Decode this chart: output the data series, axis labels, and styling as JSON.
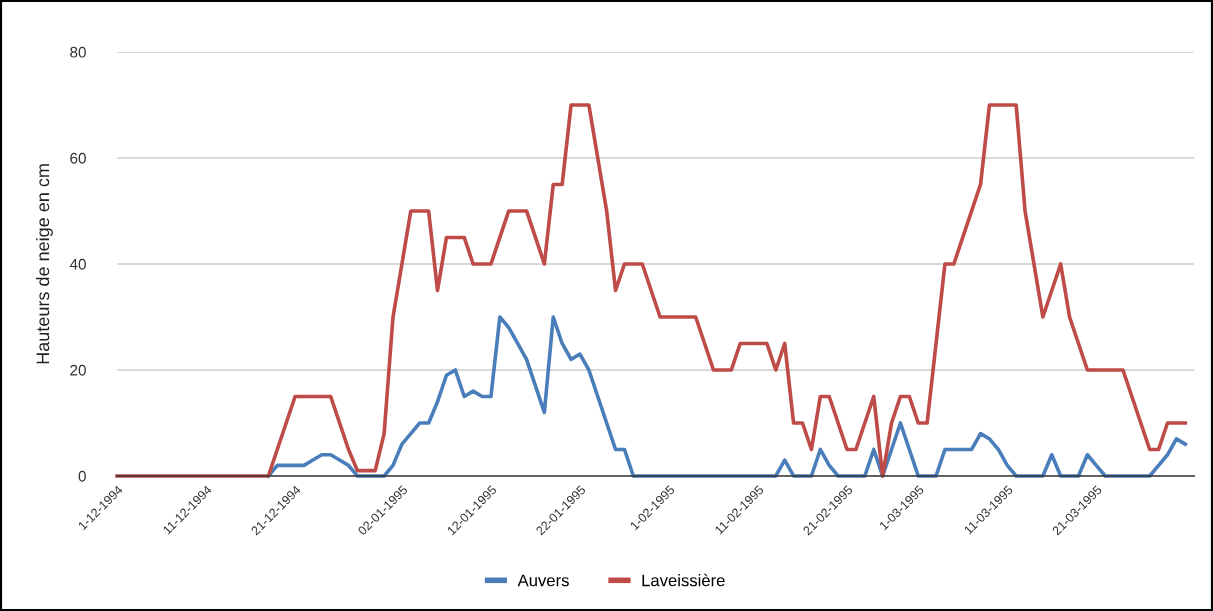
{
  "chart_data": {
    "type": "line",
    "ylabel": "Hauteurs de neige en cm",
    "x": [
      "1994-12-01",
      "1994-12-02",
      "1994-12-03",
      "1994-12-04",
      "1994-12-05",
      "1994-12-06",
      "1994-12-07",
      "1994-12-08",
      "1994-12-09",
      "1994-12-10",
      "1994-12-11",
      "1994-12-12",
      "1994-12-13",
      "1994-12-14",
      "1994-12-15",
      "1994-12-16",
      "1994-12-17",
      "1994-12-18",
      "1994-12-19",
      "1994-12-20",
      "1994-12-21",
      "1994-12-22",
      "1994-12-23",
      "1994-12-24",
      "1994-12-25",
      "1994-12-26",
      "1994-12-27",
      "1994-12-28",
      "1994-12-29",
      "1994-12-30",
      "1994-12-31",
      "1995-01-01",
      "1995-01-02",
      "1995-01-03",
      "1995-01-04",
      "1995-01-05",
      "1995-01-06",
      "1995-01-07",
      "1995-01-08",
      "1995-01-09",
      "1995-01-10",
      "1995-01-11",
      "1995-01-12",
      "1995-01-13",
      "1995-01-14",
      "1995-01-15",
      "1995-01-16",
      "1995-01-17",
      "1995-01-18",
      "1995-01-19",
      "1995-01-20",
      "1995-01-21",
      "1995-01-22",
      "1995-01-23",
      "1995-01-24",
      "1995-01-25",
      "1995-01-26",
      "1995-01-27",
      "1995-01-28",
      "1995-01-29",
      "1995-01-30",
      "1995-01-31",
      "1995-02-01",
      "1995-02-02",
      "1995-02-03",
      "1995-02-04",
      "1995-02-05",
      "1995-02-06",
      "1995-02-07",
      "1995-02-08",
      "1995-02-09",
      "1995-02-10",
      "1995-02-11",
      "1995-02-12",
      "1995-02-13",
      "1995-02-14",
      "1995-02-15",
      "1995-02-16",
      "1995-02-17",
      "1995-02-18",
      "1995-02-19",
      "1995-02-20",
      "1995-02-21",
      "1995-02-22",
      "1995-02-23",
      "1995-02-24",
      "1995-02-25",
      "1995-02-26",
      "1995-02-27",
      "1995-02-28",
      "1995-03-01",
      "1995-03-02",
      "1995-03-03",
      "1995-03-04",
      "1995-03-05",
      "1995-03-06",
      "1995-03-07",
      "1995-03-08",
      "1995-03-09",
      "1995-03-10",
      "1995-03-11",
      "1995-03-12",
      "1995-03-13",
      "1995-03-14",
      "1995-03-15",
      "1995-03-16",
      "1995-03-17",
      "1995-03-18",
      "1995-03-19",
      "1995-03-20",
      "1995-03-21",
      "1995-03-22",
      "1995-03-23",
      "1995-03-24",
      "1995-03-25",
      "1995-03-26",
      "1995-03-27",
      "1995-03-28",
      "1995-03-29",
      "1995-03-30",
      "1995-03-31"
    ],
    "series": [
      {
        "name": "Auvers",
        "color": "#4a7ebb",
        "values": [
          null,
          null,
          null,
          null,
          null,
          null,
          null,
          null,
          null,
          null,
          null,
          null,
          null,
          null,
          null,
          null,
          null,
          0,
          2,
          2,
          2,
          2,
          3,
          4,
          4,
          3,
          2,
          0,
          0,
          0,
          0,
          2,
          6,
          8,
          10,
          10,
          14,
          19,
          20,
          15,
          16,
          15,
          15,
          30,
          28,
          25,
          22,
          17,
          12,
          30,
          25,
          22,
          23,
          20,
          15,
          10,
          5,
          5,
          0,
          0,
          0,
          0,
          0,
          0,
          0,
          0,
          0,
          0,
          0,
          0,
          0,
          0,
          0,
          0,
          0,
          3,
          0,
          0,
          0,
          5,
          2,
          0,
          0,
          0,
          0,
          5,
          0,
          5,
          10,
          5,
          0,
          0,
          0,
          5,
          5,
          5,
          5,
          8,
          7,
          5,
          2,
          0,
          0,
          0,
          0,
          4,
          0,
          0,
          0,
          4,
          2,
          0,
          0,
          0,
          0,
          0,
          0,
          2,
          4,
          7,
          6
        ]
      },
      {
        "name": "Laveissière",
        "color": "#be4b48",
        "values": [
          0,
          0,
          0,
          0,
          0,
          0,
          0,
          0,
          0,
          0,
          0,
          0,
          0,
          0,
          0,
          0,
          0,
          0,
          5,
          10,
          15,
          15,
          15,
          15,
          15,
          10,
          5,
          1,
          1,
          1,
          8,
          30,
          40,
          50,
          50,
          50,
          35,
          45,
          45,
          45,
          40,
          40,
          40,
          45,
          50,
          50,
          50,
          45,
          40,
          55,
          55,
          70,
          70,
          70,
          60,
          50,
          35,
          40,
          40,
          40,
          35,
          30,
          30,
          30,
          30,
          30,
          25,
          20,
          20,
          20,
          25,
          25,
          25,
          25,
          20,
          25,
          10,
          10,
          5,
          15,
          15,
          10,
          5,
          5,
          10,
          15,
          0,
          10,
          15,
          15,
          10,
          10,
          25,
          40,
          40,
          45,
          50,
          55,
          70,
          70,
          70,
          70,
          50,
          40,
          30,
          35,
          40,
          30,
          25,
          20,
          20,
          20,
          20,
          20,
          15,
          10,
          5,
          5,
          10,
          10,
          10
        ]
      }
    ],
    "xlim": [
      "1994-12-01",
      "1995-04-01"
    ],
    "xticks": [
      {
        "value": "1994-12-01",
        "label": "1-12-1994"
      },
      {
        "value": "1994-12-11",
        "label": "11-12-1994"
      },
      {
        "value": "1994-12-21",
        "label": "21-12-1994"
      },
      {
        "value": "1995-01-02",
        "label": "02-01-1995"
      },
      {
        "value": "1995-01-12",
        "label": "12-01-1995"
      },
      {
        "value": "1995-01-22",
        "label": "22-01-1995"
      },
      {
        "value": "1995-02-01",
        "label": "1-02-1995"
      },
      {
        "value": "1995-02-11",
        "label": "11-02-1995"
      },
      {
        "value": "1995-02-21",
        "label": "21-02-1995"
      },
      {
        "value": "1995-03-01",
        "label": "1-03-1995"
      },
      {
        "value": "1995-03-11",
        "label": "11-03-1995"
      },
      {
        "value": "1995-03-21",
        "label": "21-03-1995"
      }
    ],
    "ylim": [
      0,
      80
    ],
    "yticks": [
      0,
      20,
      40,
      60,
      80
    ],
    "grid": "y",
    "legend": "bottom",
    "marker": "none",
    "line_style": "solid"
  }
}
